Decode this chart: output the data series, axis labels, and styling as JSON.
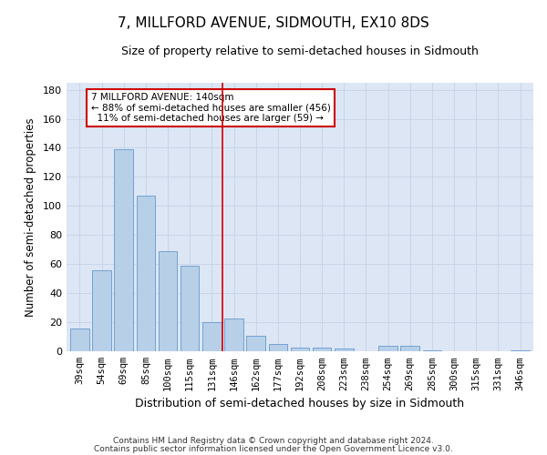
{
  "title": "7, MILLFORD AVENUE, SIDMOUTH, EX10 8DS",
  "subtitle": "Size of property relative to semi-detached houses in Sidmouth",
  "xlabel": "Distribution of semi-detached houses by size in Sidmouth",
  "ylabel": "Number of semi-detached properties",
  "categories": [
    "39sqm",
    "54sqm",
    "69sqm",
    "85sqm",
    "100sqm",
    "115sqm",
    "131sqm",
    "146sqm",
    "162sqm",
    "177sqm",
    "192sqm",
    "208sqm",
    "223sqm",
    "238sqm",
    "254sqm",
    "269sqm",
    "285sqm",
    "300sqm",
    "315sqm",
    "331sqm",
    "346sqm"
  ],
  "values": [
    16,
    56,
    139,
    107,
    69,
    59,
    20,
    23,
    11,
    5,
    3,
    3,
    2,
    0,
    4,
    4,
    1,
    0,
    0,
    0,
    1
  ],
  "bar_color": "#b8cfe8",
  "bar_edge_color": "#6699cc",
  "vline_x_index": 7,
  "vline_color": "#cc0000",
  "annotation_smaller_pct": "88%",
  "annotation_smaller_n": "456",
  "annotation_larger_pct": "11%",
  "annotation_larger_n": "59",
  "annotation_box_color": "#cc0000",
  "ylim": [
    0,
    185
  ],
  "yticks": [
    0,
    20,
    40,
    60,
    80,
    100,
    120,
    140,
    160,
    180
  ],
  "grid_color": "#c8d4e8",
  "bg_color": "#dce6f5",
  "footer1": "Contains HM Land Registry data © Crown copyright and database right 2024.",
  "footer2": "Contains public sector information licensed under the Open Government Licence v3.0."
}
